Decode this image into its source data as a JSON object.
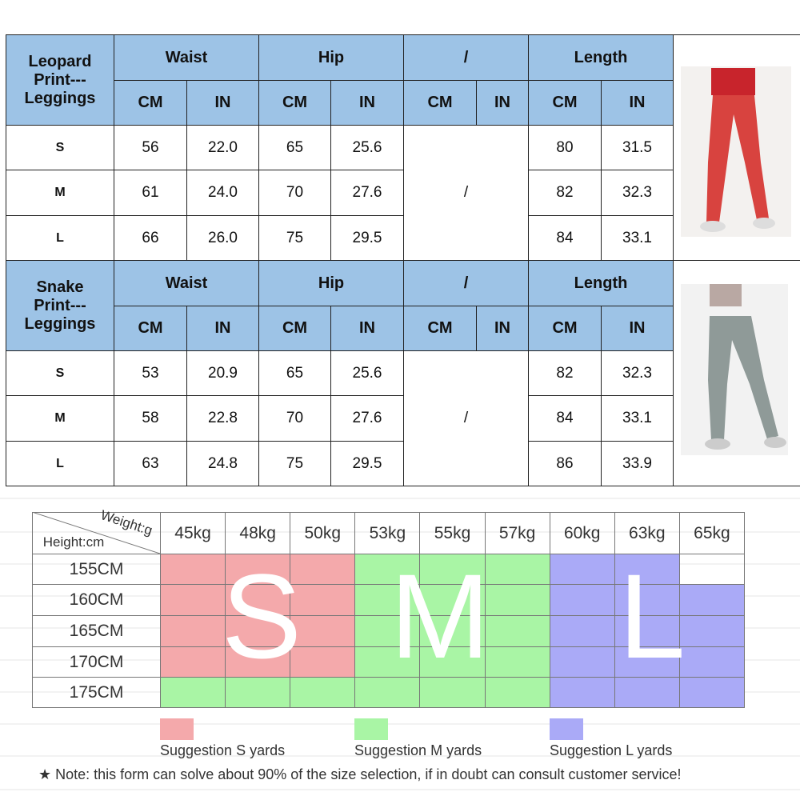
{
  "size_tables": [
    {
      "product": "Leopard\nPrint---\nLeggings",
      "groups": [
        "Waist",
        "Hip",
        "/",
        "Length"
      ],
      "units": [
        "CM",
        "IN",
        "CM",
        "IN",
        "CM",
        "IN",
        "CM",
        "IN"
      ],
      "sizes": [
        "S",
        "M",
        "L"
      ],
      "rows": [
        [
          "56",
          "22.0",
          "65",
          "25.6",
          "80",
          "31.5"
        ],
        [
          "61",
          "24.0",
          "70",
          "27.6",
          "82",
          "32.3"
        ],
        [
          "66",
          "26.0",
          "75",
          "29.5",
          "84",
          "33.1"
        ]
      ],
      "merged_cell": "/"
    },
    {
      "product": "Snake\nPrint---\nLeggings",
      "groups": [
        "Waist",
        "Hip",
        "/",
        "Length"
      ],
      "units": [
        "CM",
        "IN",
        "CM",
        "IN",
        "CM",
        "IN",
        "CM",
        "IN"
      ],
      "sizes": [
        "S",
        "M",
        "L"
      ],
      "rows": [
        [
          "53",
          "20.9",
          "65",
          "25.6",
          "82",
          "32.3"
        ],
        [
          "58",
          "22.8",
          "70",
          "27.6",
          "84",
          "33.1"
        ],
        [
          "63",
          "24.8",
          "75",
          "29.5",
          "86",
          "33.9"
        ]
      ],
      "merged_cell": "/"
    }
  ],
  "weight_chart": {
    "corner_top": "Weight:g",
    "corner_bottom": "Height:cm",
    "weights": [
      "45kg",
      "48kg",
      "50kg",
      "53kg",
      "55kg",
      "57kg",
      "60kg",
      "63kg",
      "65kg"
    ],
    "heights": [
      "155CM",
      "160CM",
      "165CM",
      "170CM",
      "175CM"
    ],
    "big_letters": [
      "S",
      "M",
      "L"
    ],
    "legend": [
      "Suggestion S yards",
      "Suggestion M yards",
      "Suggestion L yards"
    ],
    "note": "★ Note: this form can solve about 90% of the size selection, if in doubt can consult customer service!"
  }
}
